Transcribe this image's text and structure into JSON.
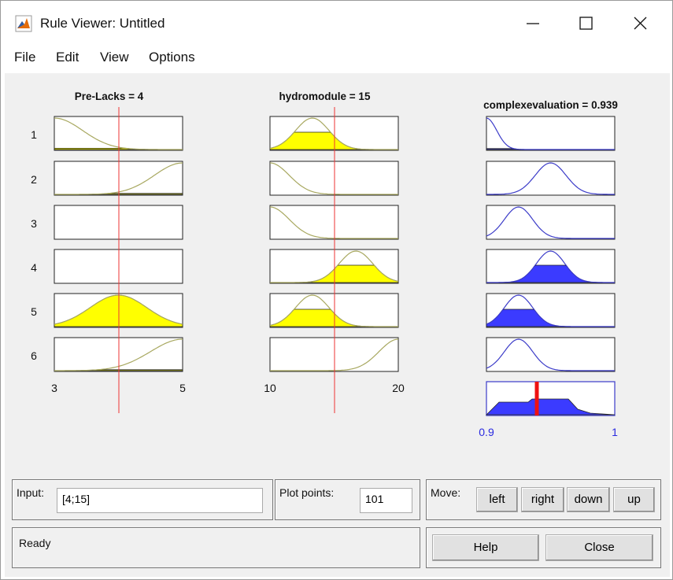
{
  "window": {
    "title": "Rule Viewer: Untitled"
  },
  "menu": [
    "File",
    "Edit",
    "View",
    "Options"
  ],
  "plots": {
    "inputs": [
      {
        "label": "Pre-Lacks = 4",
        "range_labels": [
          "3",
          "5"
        ]
      },
      {
        "label": "hydromodule = 15",
        "range_labels": [
          "10",
          "20"
        ]
      }
    ],
    "output": {
      "label": "complexevaluation = 0.939",
      "range_labels": [
        "0.9",
        "1"
      ]
    },
    "rule_numbers": [
      "1",
      "2",
      "3",
      "4",
      "5",
      "6"
    ]
  },
  "controls": {
    "input_label": "Input:",
    "input_value": "[4;15]",
    "plot_points_label": "Plot points:",
    "plot_points_value": "101",
    "move_label": "Move:",
    "move_buttons": [
      "left",
      "right",
      "down",
      "up"
    ],
    "status": "Ready",
    "help": "Help",
    "close": "Close"
  }
}
